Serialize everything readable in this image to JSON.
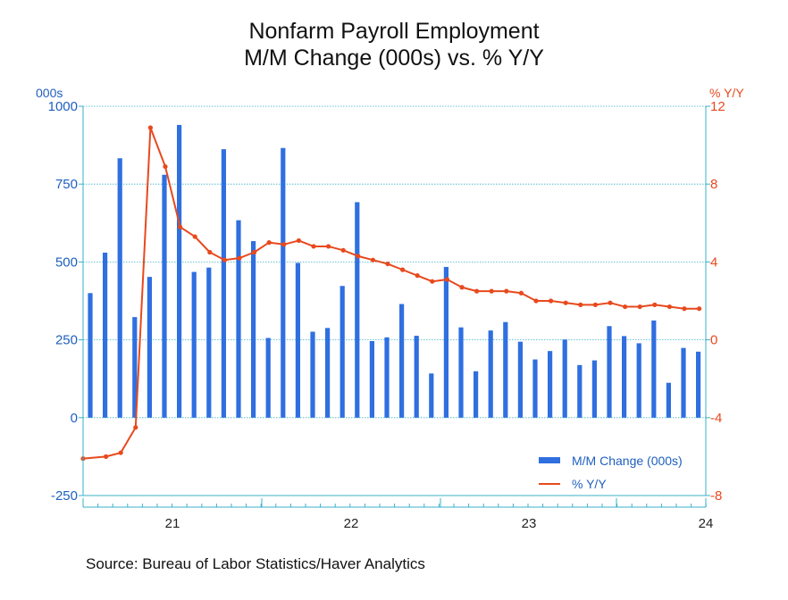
{
  "chart_data": {
    "type": "bar",
    "title": "Nonfarm Payroll Employment",
    "subtitle": "M/M Change (000s) vs. % Y/Y",
    "left_axis": {
      "unit": "000s",
      "ylim": [
        -250,
        1000
      ],
      "ticks": [
        1000,
        750,
        500,
        250,
        0,
        -250
      ]
    },
    "right_axis": {
      "unit": "% Y/Y",
      "ylim": [
        -8,
        12
      ],
      "ticks": [
        12,
        8,
        4,
        0,
        -4,
        -8
      ]
    },
    "x_axis": {
      "ticks": [
        "21",
        "22",
        "23",
        "24"
      ]
    },
    "grid": true,
    "legend_position": "bottom-right",
    "series": [
      {
        "name": "M/M Change (000s)",
        "type": "bar",
        "axis": "left",
        "color": "#2f6fe0",
        "values": [
          400,
          530,
          833,
          323,
          452,
          780,
          940,
          468,
          482,
          862,
          634,
          567,
          256,
          866,
          497,
          276,
          288,
          423,
          692,
          246,
          258,
          365,
          263,
          142,
          484,
          290,
          149,
          280,
          307,
          244,
          187,
          214,
          251,
          169,
          184,
          294,
          262,
          239,
          312,
          112,
          224,
          212
        ]
      },
      {
        "name": "% Y/Y",
        "type": "line",
        "axis": "right",
        "color": "#e8491d",
        "values": [
          -6.1,
          -6.0,
          -5.8,
          -4.5,
          10.9,
          8.9,
          5.8,
          5.3,
          4.5,
          4.1,
          4.2,
          4.5,
          5.0,
          4.9,
          5.1,
          4.8,
          4.8,
          4.6,
          4.3,
          4.1,
          3.9,
          3.6,
          3.3,
          3.0,
          3.1,
          2.7,
          2.5,
          2.5,
          2.5,
          2.4,
          2.0,
          2.0,
          1.9,
          1.8,
          1.8,
          1.9,
          1.7,
          1.7,
          1.8,
          1.7,
          1.6,
          1.6
        ]
      }
    ]
  },
  "source": "Source:  Bureau of Labor Statistics/Haver Analytics"
}
